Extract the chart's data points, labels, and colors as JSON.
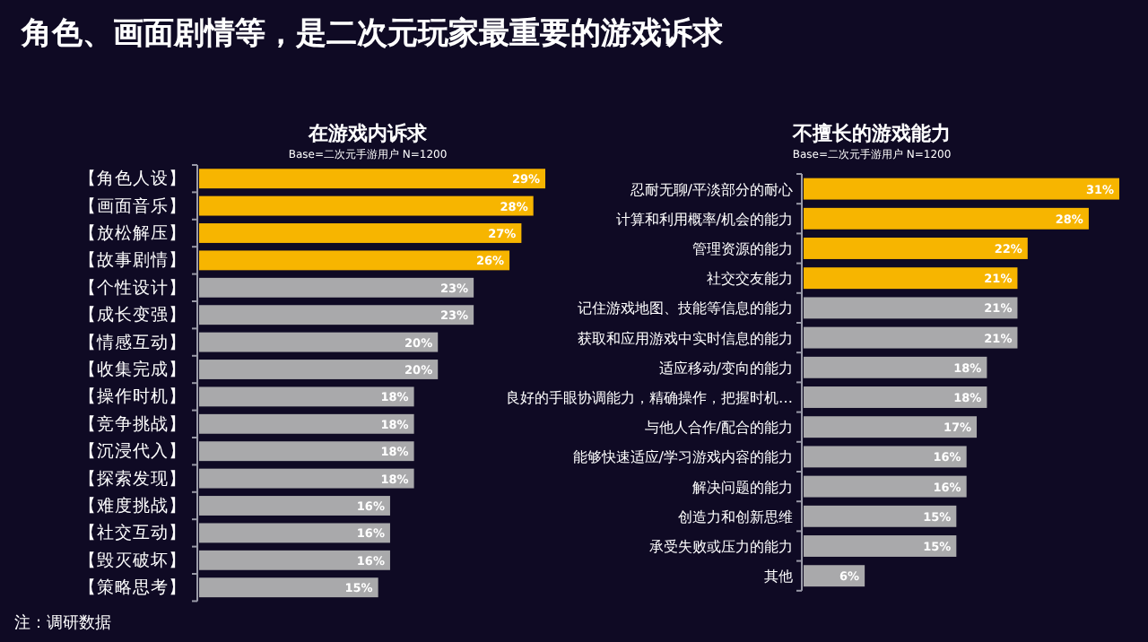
{
  "chart_data": [
    {
      "type": "bar",
      "orientation": "horizontal",
      "title": "在游戏内诉求",
      "subtitle": "Base=二次元手游用户 N=1200",
      "annotations": [
        "角色、画面剧情等，是二次元玩家最重要的游戏诉求",
        "注：调研数据"
      ],
      "categories": [
        "【角色人设】",
        "【画面音乐】",
        "【放松解压】",
        "【故事剧情】",
        "【个性设计】",
        "【成长变强】",
        "【情感互动】",
        "【收集完成】",
        "【操作时机】",
        "【竞争挑战】",
        "【沉浸代入】",
        "【探索发现】",
        "【难度挑战】",
        "【社交互动】",
        "【毁灭破坏】",
        "【策略思考】"
      ],
      "values": [
        29,
        28,
        27,
        26,
        23,
        23,
        20,
        20,
        18,
        18,
        18,
        18,
        16,
        16,
        16,
        15
      ],
      "colors": [
        "#f7b500",
        "#f7b500",
        "#f7b500",
        "#f7b500",
        "#a9a9ab",
        "#a9a9ab",
        "#a9a9ab",
        "#a9a9ab",
        "#a9a9ab",
        "#a9a9ab",
        "#a9a9ab",
        "#a9a9ab",
        "#a9a9ab",
        "#a9a9ab",
        "#a9a9ab",
        "#a9a9ab"
      ],
      "value_labels": [
        "29%",
        "28%",
        "27%",
        "26%",
        "23%",
        "23%",
        "20%",
        "20%",
        "18%",
        "18%",
        "18%",
        "18%",
        "16%",
        "16%",
        "16%",
        "15%"
      ]
    },
    {
      "type": "bar",
      "orientation": "horizontal",
      "title": "不擅长的游戏能力",
      "subtitle": "Base=二次元手游用户 N=1200",
      "categories": [
        "忍耐无聊/平淡部分的耐心",
        "计算和利用概率/机会的能力",
        "管理资源的能力",
        "社交交友能力",
        "记住游戏地图、技能等信息的能力",
        "获取和应用游戏中实时信息的能力",
        "适应移动/变向的能力",
        "良好的手眼协调能力，精确操作，把握时机…",
        "与他人合作/配合的能力",
        "能够快速适应/学习游戏内容的能力",
        "解决问题的能力",
        "创造力和创新思维",
        "承受失败或压力的能力",
        "其他"
      ],
      "values": [
        31,
        28,
        22,
        21,
        21,
        21,
        18,
        18,
        17,
        16,
        16,
        15,
        15,
        6
      ],
      "colors": [
        "#f7b500",
        "#f7b500",
        "#f7b500",
        "#f7b500",
        "#a9a9ab",
        "#a9a9ab",
        "#a9a9ab",
        "#a9a9ab",
        "#a9a9ab",
        "#a9a9ab",
        "#a9a9ab",
        "#a9a9ab",
        "#a9a9ab",
        "#a9a9ab"
      ],
      "value_labels": [
        "31%",
        "28%",
        "22%",
        "21%",
        "21%",
        "21%",
        "18%",
        "18%",
        "17%",
        "16%",
        "16%",
        "15%",
        "15%",
        "6%"
      ]
    }
  ]
}
